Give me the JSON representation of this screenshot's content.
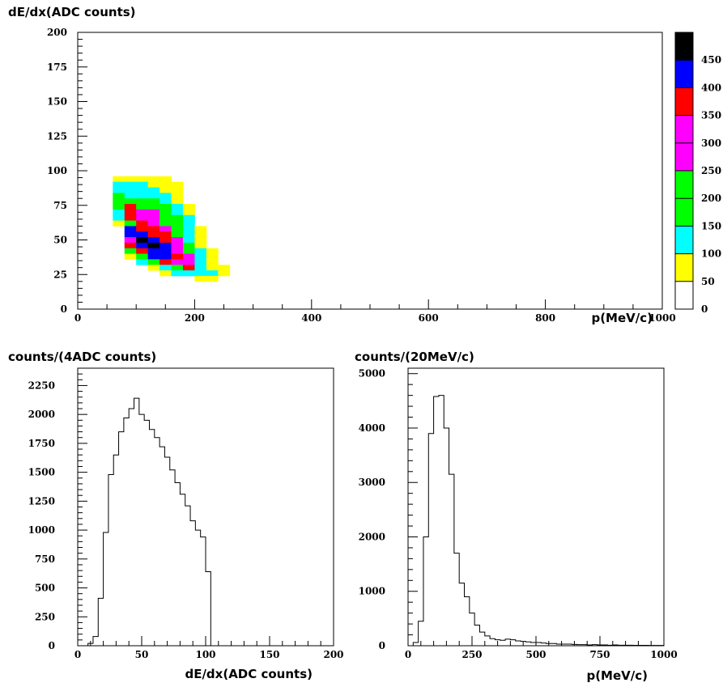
{
  "chart_data": [
    {
      "type": "heatmap",
      "title": "",
      "ylabel": "dE/dx(ADC counts)",
      "xlabel": "p(MeV/c)",
      "xlim": [
        0,
        1000
      ],
      "ylim": [
        0,
        200
      ],
      "x_ticks": [
        "0",
        "200",
        "400",
        "600",
        "800",
        "1000"
      ],
      "y_ticks": [
        "0",
        "25",
        "50",
        "75",
        "100",
        "125",
        "150",
        "175",
        "200"
      ],
      "colorbar": {
        "ticks": [
          "0",
          "50",
          "100",
          "150",
          "200",
          "250",
          "300",
          "350",
          "400",
          "450"
        ],
        "max": 500,
        "bands": [
          {
            "from": 0,
            "to": 50,
            "color": "#ffffff"
          },
          {
            "from": 50,
            "to": 100,
            "color": "#ffff00"
          },
          {
            "from": 100,
            "to": 150,
            "color": "#00ffff"
          },
          {
            "from": 150,
            "to": 200,
            "color": "#00ff00"
          },
          {
            "from": 200,
            "to": 250,
            "color": "#00ff00"
          },
          {
            "from": 250,
            "to": 300,
            "color": "#ff00ff"
          },
          {
            "from": 300,
            "to": 350,
            "color": "#ff00ff"
          },
          {
            "from": 350,
            "to": 400,
            "color": "#ff0000"
          },
          {
            "from": 400,
            "to": 450,
            "color": "#0000ff"
          },
          {
            "from": 450,
            "to": 500,
            "color": "#000000"
          }
        ]
      },
      "cells": [
        [
          60,
          92,
          75
        ],
        [
          80,
          92,
          75
        ],
        [
          100,
          92,
          75
        ],
        [
          120,
          92,
          75
        ],
        [
          140,
          92,
          75
        ],
        [
          60,
          88,
          125
        ],
        [
          80,
          88,
          125
        ],
        [
          100,
          88,
          125
        ],
        [
          120,
          88,
          75
        ],
        [
          140,
          88,
          75
        ],
        [
          160,
          88,
          75
        ],
        [
          60,
          84,
          125
        ],
        [
          80,
          84,
          125
        ],
        [
          100,
          84,
          125
        ],
        [
          120,
          84,
          125
        ],
        [
          140,
          84,
          75
        ],
        [
          160,
          84,
          75
        ],
        [
          60,
          80,
          225
        ],
        [
          80,
          80,
          125
        ],
        [
          100,
          80,
          125
        ],
        [
          120,
          80,
          125
        ],
        [
          140,
          80,
          125
        ],
        [
          160,
          80,
          75
        ],
        [
          60,
          76,
          225
        ],
        [
          80,
          76,
          225
        ],
        [
          100,
          76,
          225
        ],
        [
          120,
          76,
          225
        ],
        [
          140,
          76,
          125
        ],
        [
          160,
          76,
          75
        ],
        [
          60,
          72,
          225
        ],
        [
          80,
          72,
          375
        ],
        [
          100,
          72,
          225
        ],
        [
          120,
          72,
          225
        ],
        [
          140,
          72,
          225
        ],
        [
          160,
          72,
          125
        ],
        [
          180,
          72,
          75
        ],
        [
          60,
          68,
          125
        ],
        [
          80,
          68,
          375
        ],
        [
          100,
          68,
          325
        ],
        [
          120,
          68,
          325
        ],
        [
          140,
          68,
          225
        ],
        [
          160,
          68,
          125
        ],
        [
          180,
          68,
          75
        ],
        [
          60,
          64,
          125
        ],
        [
          80,
          64,
          375
        ],
        [
          100,
          64,
          325
        ],
        [
          120,
          64,
          325
        ],
        [
          140,
          64,
          225
        ],
        [
          160,
          64,
          225
        ],
        [
          180,
          64,
          125
        ],
        [
          60,
          60,
          75
        ],
        [
          80,
          60,
          225
        ],
        [
          100,
          60,
          375
        ],
        [
          120,
          60,
          325
        ],
        [
          140,
          60,
          225
        ],
        [
          160,
          60,
          225
        ],
        [
          180,
          60,
          125
        ],
        [
          80,
          56,
          425
        ],
        [
          100,
          56,
          375
        ],
        [
          120,
          56,
          375
        ],
        [
          140,
          56,
          325
        ],
        [
          160,
          56,
          225
        ],
        [
          180,
          56,
          125
        ],
        [
          200,
          56,
          75
        ],
        [
          80,
          52,
          425
        ],
        [
          100,
          52,
          425
        ],
        [
          120,
          52,
          375
        ],
        [
          140,
          52,
          375
        ],
        [
          160,
          52,
          225
        ],
        [
          180,
          52,
          125
        ],
        [
          200,
          52,
          75
        ],
        [
          80,
          48,
          325
        ],
        [
          100,
          48,
          475
        ],
        [
          120,
          48,
          425
        ],
        [
          140,
          48,
          375
        ],
        [
          160,
          48,
          325
        ],
        [
          180,
          48,
          125
        ],
        [
          200,
          48,
          75
        ],
        [
          80,
          44,
          375
        ],
        [
          100,
          44,
          425
        ],
        [
          120,
          44,
          475
        ],
        [
          140,
          44,
          425
        ],
        [
          160,
          44,
          325
        ],
        [
          180,
          44,
          225
        ],
        [
          200,
          44,
          75
        ],
        [
          80,
          40,
          225
        ],
        [
          100,
          40,
          375
        ],
        [
          120,
          40,
          425
        ],
        [
          140,
          40,
          425
        ],
        [
          160,
          40,
          325
        ],
        [
          180,
          40,
          225
        ],
        [
          200,
          40,
          125
        ],
        [
          220,
          40,
          75
        ],
        [
          80,
          36,
          75
        ],
        [
          100,
          36,
          225
        ],
        [
          120,
          36,
          425
        ],
        [
          140,
          36,
          425
        ],
        [
          160,
          36,
          375
        ],
        [
          180,
          36,
          325
        ],
        [
          200,
          36,
          125
        ],
        [
          220,
          36,
          75
        ],
        [
          100,
          32,
          125
        ],
        [
          120,
          32,
          225
        ],
        [
          140,
          32,
          375
        ],
        [
          160,
          32,
          325
        ],
        [
          180,
          32,
          325
        ],
        [
          200,
          32,
          125
        ],
        [
          220,
          32,
          75
        ],
        [
          120,
          28,
          75
        ],
        [
          140,
          28,
          125
        ],
        [
          160,
          28,
          225
        ],
        [
          180,
          28,
          375
        ],
        [
          200,
          28,
          125
        ],
        [
          220,
          28,
          75
        ],
        [
          240,
          28,
          75
        ],
        [
          140,
          24,
          75
        ],
        [
          160,
          24,
          125
        ],
        [
          180,
          24,
          125
        ],
        [
          200,
          24,
          125
        ],
        [
          220,
          24,
          125
        ],
        [
          240,
          24,
          75
        ],
        [
          200,
          20,
          75
        ],
        [
          220,
          20,
          75
        ]
      ]
    },
    {
      "type": "histogram",
      "title": "",
      "ylabel": "counts/(4ADC counts)",
      "xlabel": "dE/dx(ADC counts)",
      "xlim": [
        0,
        200
      ],
      "ylim": [
        0,
        2400
      ],
      "x_ticks": [
        "0",
        "50",
        "100",
        "150",
        "200"
      ],
      "y_ticks": [
        "0",
        "250",
        "500",
        "750",
        "1000",
        "1250",
        "1500",
        "1750",
        "2000",
        "2250"
      ],
      "bin_width": 4,
      "bin_start": 0,
      "values": [
        0,
        0,
        20,
        80,
        410,
        980,
        1480,
        1650,
        1850,
        1970,
        2050,
        2140,
        2000,
        1950,
        1870,
        1800,
        1720,
        1630,
        1520,
        1410,
        1310,
        1210,
        1080,
        1000,
        940,
        640,
        0,
        0,
        0,
        0,
        0,
        0,
        0,
        0,
        0,
        0,
        0,
        0,
        0,
        0,
        0,
        0,
        0,
        0,
        0,
        0,
        0,
        0,
        0,
        0
      ]
    },
    {
      "type": "histogram",
      "title": "",
      "ylabel": "counts/(20MeV/c)",
      "xlabel": "p(MeV/c)",
      "xlim": [
        0,
        1000
      ],
      "ylim": [
        0,
        5100
      ],
      "x_ticks": [
        "0",
        "250",
        "500",
        "750",
        "1000"
      ],
      "y_ticks": [
        "0",
        "1000",
        "2000",
        "3000",
        "4000",
        "5000"
      ],
      "bin_width": 20,
      "bin_start": 0,
      "values": [
        0,
        60,
        450,
        2000,
        3900,
        4580,
        4600,
        4000,
        3150,
        1700,
        1150,
        900,
        600,
        380,
        250,
        180,
        130,
        110,
        100,
        120,
        110,
        90,
        80,
        70,
        60,
        60,
        50,
        40,
        40,
        30,
        30,
        30,
        25,
        20,
        20,
        15,
        20,
        15,
        15,
        10,
        15,
        10,
        10,
        10,
        8,
        8,
        8,
        5,
        5,
        5
      ]
    }
  ]
}
